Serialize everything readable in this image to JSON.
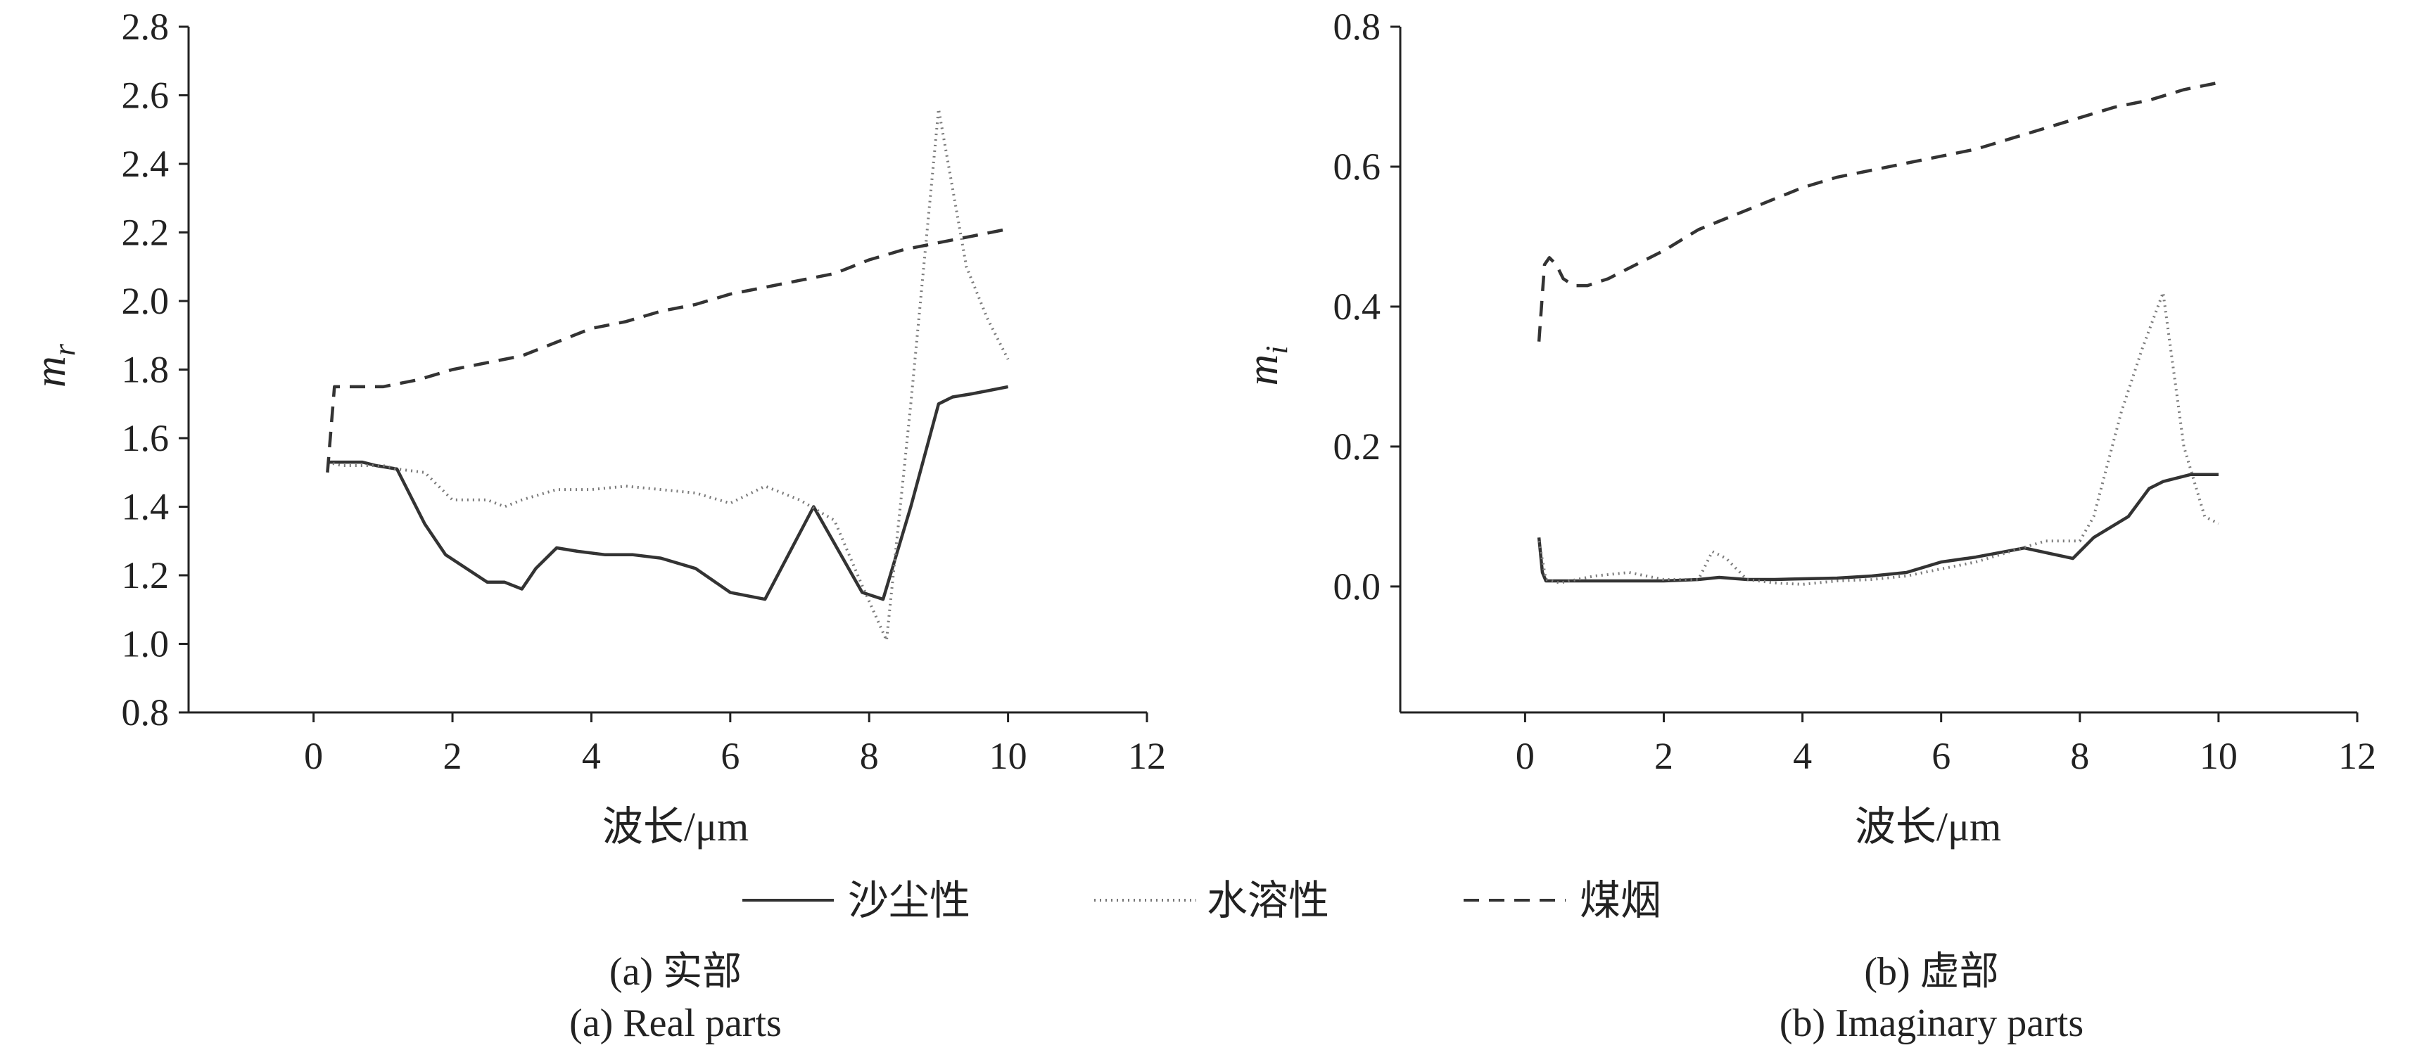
{
  "figure": {
    "legend": [
      {
        "name": "沙尘性",
        "style": "solid"
      },
      {
        "name": "水溶性",
        "style": "dotted"
      },
      {
        "name": "煤烟",
        "style": "dashed"
      }
    ],
    "panels": [
      {
        "caption_cn": "(a) 实部",
        "caption_en": "(a) Real parts",
        "ylabel_main": "m",
        "ylabel_sub": "r"
      },
      {
        "caption_cn": "(b) 虚部",
        "caption_en": "(b) Imaginary parts",
        "ylabel_main": "m",
        "ylabel_sub": "i"
      }
    ]
  },
  "chart_data": [
    {
      "type": "line",
      "title": "(a) 实部 / (a) Real parts",
      "xlabel": "波长/μm",
      "ylabel": "m_r",
      "xlim": [
        -1.8,
        12
      ],
      "ylim": [
        0.8,
        2.8
      ],
      "xticks": [
        0,
        2,
        4,
        6,
        8,
        10,
        12
      ],
      "xtick_labels": [
        "0",
        "2",
        "4",
        "6",
        "8",
        "10",
        "12"
      ],
      "yticks": [
        0.8,
        1.0,
        1.2,
        1.4,
        1.6,
        1.8,
        2.0,
        2.2,
        2.4,
        2.6,
        2.8
      ],
      "ytick_labels": [
        "0.8",
        "1.0",
        "1.2",
        "1.4",
        "1.6",
        "1.8",
        "2.0",
        "2.2",
        "2.4",
        "2.6",
        "2.8"
      ],
      "grid": false,
      "legend_position": "bottom-center",
      "series": [
        {
          "name": "沙尘性",
          "style": "solid",
          "x": [
            0.2,
            0.35,
            0.7,
            0.9,
            1.2,
            1.6,
            1.9,
            2.2,
            2.5,
            2.75,
            3.0,
            3.2,
            3.5,
            3.8,
            4.2,
            4.6,
            5.0,
            5.5,
            6.0,
            6.5,
            7.2,
            7.9,
            8.2,
            8.6,
            9.0,
            9.2,
            9.5,
            10.0
          ],
          "y": [
            1.53,
            1.53,
            1.53,
            1.52,
            1.51,
            1.35,
            1.26,
            1.22,
            1.18,
            1.18,
            1.16,
            1.22,
            1.28,
            1.27,
            1.26,
            1.26,
            1.25,
            1.22,
            1.15,
            1.13,
            1.4,
            1.15,
            1.13,
            1.4,
            1.7,
            1.72,
            1.73,
            1.75
          ]
        },
        {
          "name": "水溶性",
          "style": "dotted",
          "x": [
            0.2,
            0.4,
            0.7,
            1.0,
            1.2,
            1.6,
            2.0,
            2.5,
            2.75,
            3.0,
            3.5,
            4.0,
            4.5,
            5.0,
            5.5,
            6.0,
            6.5,
            7.0,
            7.5,
            7.9,
            8.25,
            8.6,
            9.0,
            9.4,
            9.7,
            10.0
          ],
          "y": [
            1.53,
            1.52,
            1.52,
            1.52,
            1.51,
            1.5,
            1.42,
            1.42,
            1.4,
            1.42,
            1.45,
            1.45,
            1.46,
            1.45,
            1.44,
            1.41,
            1.46,
            1.42,
            1.36,
            1.17,
            1.01,
            1.7,
            2.56,
            2.1,
            1.95,
            1.83
          ]
        },
        {
          "name": "煤烟",
          "style": "dashed",
          "x": [
            0.2,
            0.3,
            0.4,
            1.0,
            1.5,
            2.0,
            2.5,
            3.0,
            3.5,
            4.0,
            4.5,
            5.0,
            5.5,
            6.0,
            6.5,
            7.0,
            7.5,
            8.0,
            8.5,
            9.0,
            9.5,
            10.0
          ],
          "y": [
            1.5,
            1.75,
            1.75,
            1.75,
            1.77,
            1.8,
            1.82,
            1.84,
            1.88,
            1.92,
            1.94,
            1.97,
            1.99,
            2.02,
            2.04,
            2.06,
            2.08,
            2.12,
            2.15,
            2.17,
            2.19,
            2.21
          ]
        }
      ]
    },
    {
      "type": "line",
      "title": "(b) 虚部 / (b) Imaginary parts",
      "xlabel": "波长/μm",
      "ylabel": "m_i",
      "xlim": [
        -1.8,
        12
      ],
      "ylim": [
        -0.18,
        0.8
      ],
      "xticks": [
        0,
        2,
        4,
        6,
        8,
        10,
        12
      ],
      "xtick_labels": [
        "0",
        "2",
        "4",
        "6",
        "8",
        "10",
        "12"
      ],
      "yticks": [
        0.0,
        0.2,
        0.4,
        0.6,
        0.8
      ],
      "ytick_labels": [
        "0.0",
        "0.2",
        "0.4",
        "0.6",
        "0.8"
      ],
      "grid": false,
      "legend_position": "bottom-center",
      "series": [
        {
          "name": "沙尘性",
          "style": "solid",
          "x": [
            0.2,
            0.25,
            0.3,
            0.4,
            1.0,
            2.0,
            2.5,
            2.8,
            3.2,
            3.6,
            4.0,
            4.5,
            5.0,
            5.5,
            6.0,
            6.5,
            7.2,
            7.9,
            8.2,
            8.7,
            9.0,
            9.2,
            9.6,
            10.0
          ],
          "y": [
            0.07,
            0.02,
            0.008,
            0.008,
            0.008,
            0.008,
            0.01,
            0.013,
            0.01,
            0.01,
            0.011,
            0.012,
            0.015,
            0.02,
            0.035,
            0.042,
            0.055,
            0.04,
            0.07,
            0.1,
            0.14,
            0.15,
            0.16,
            0.16
          ]
        },
        {
          "name": "水溶性",
          "style": "dotted",
          "x": [
            0.2,
            0.3,
            0.5,
            1.0,
            1.5,
            2.0,
            2.5,
            2.7,
            2.9,
            3.2,
            3.6,
            4.0,
            4.5,
            5.0,
            5.5,
            6.0,
            6.5,
            7.0,
            7.5,
            8.0,
            8.2,
            8.6,
            8.9,
            9.2,
            9.5,
            9.8,
            10.0
          ],
          "y": [
            0.065,
            0.01,
            0.005,
            0.015,
            0.02,
            0.01,
            0.01,
            0.05,
            0.04,
            0.01,
            0.005,
            0.003,
            0.008,
            0.01,
            0.015,
            0.025,
            0.035,
            0.05,
            0.065,
            0.065,
            0.1,
            0.25,
            0.34,
            0.42,
            0.2,
            0.1,
            0.09
          ]
        },
        {
          "name": "煤烟",
          "style": "dashed",
          "x": [
            0.2,
            0.28,
            0.35,
            0.45,
            0.55,
            0.7,
            0.9,
            1.2,
            1.5,
            2.0,
            2.5,
            3.0,
            3.5,
            4.0,
            4.5,
            5.0,
            5.5,
            6.0,
            6.5,
            7.0,
            7.5,
            8.0,
            8.5,
            9.0,
            9.5,
            10.0
          ],
          "y": [
            0.35,
            0.46,
            0.47,
            0.46,
            0.44,
            0.43,
            0.43,
            0.44,
            0.455,
            0.48,
            0.51,
            0.53,
            0.55,
            0.57,
            0.585,
            0.595,
            0.605,
            0.615,
            0.625,
            0.64,
            0.655,
            0.67,
            0.685,
            0.695,
            0.71,
            0.72
          ]
        }
      ]
    }
  ]
}
